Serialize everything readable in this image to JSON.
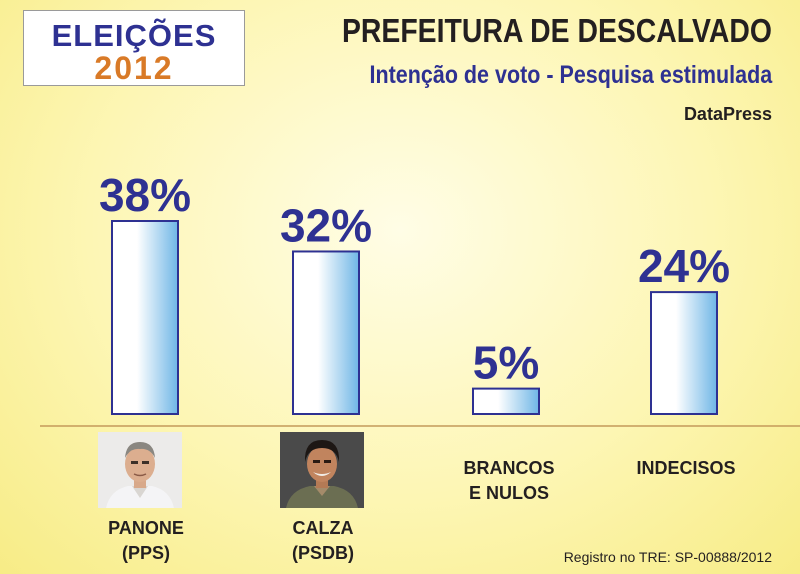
{
  "logo": {
    "line1": "ELEIÇÕES",
    "line2": "2012"
  },
  "header": {
    "title": "PREFEITURA DE DESCALVADO",
    "subtitle": "Intenção de voto - Pesquisa estimulada",
    "source": "DataPress"
  },
  "footer": {
    "registro": "Registro no TRE: SP-00888/2012"
  },
  "colors": {
    "bar_edge": "#2e3192",
    "bar_light": "#ffffff",
    "bar_blue": "#6fb6e6",
    "value_text": "#2e3192",
    "baseline": "#c49a5a"
  },
  "chart_data": {
    "type": "bar",
    "categories": [
      {
        "line1": "PANONE",
        "line2": "(PPS)"
      },
      {
        "line1": "CALZA",
        "line2": "(PSDB)"
      },
      {
        "line1": "BRANCOS",
        "line2": "E NULOS"
      },
      {
        "line1": "INDECISOS",
        "line2": ""
      }
    ],
    "values": [
      38,
      32,
      5,
      24
    ],
    "value_labels": [
      "38%",
      "32%",
      "5%",
      "24%"
    ],
    "unit": "%",
    "title": "PREFEITURA DE DESCALVADO",
    "subtitle": "Intenção de voto - Pesquisa estimulada",
    "ylim": [
      0,
      38
    ],
    "grid": false,
    "legend": "none"
  }
}
